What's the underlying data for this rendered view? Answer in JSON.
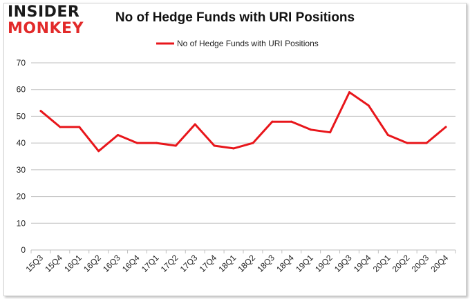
{
  "header": {
    "logo_top": "INSIDER",
    "logo_bottom": "MONKEY"
  },
  "colors": {
    "line": "#e8161b",
    "grid": "#bfbfbf",
    "logo_accent": "#e22a2a"
  },
  "chart_data": {
    "type": "line",
    "title": "No of Hedge Funds with URI Positions",
    "xlabel": "",
    "ylabel": "",
    "ylim": [
      0,
      70
    ],
    "yticks": [
      0,
      10,
      20,
      30,
      40,
      50,
      60,
      70
    ],
    "grid": true,
    "legend_position": "top-center",
    "categories": [
      "15Q3",
      "15Q4",
      "16Q1",
      "16Q2",
      "16Q3",
      "16Q4",
      "17Q1",
      "17Q2",
      "17Q3",
      "17Q4",
      "18Q1",
      "18Q2",
      "18Q3",
      "18Q4",
      "19Q1",
      "19Q2",
      "19Q3",
      "19Q4",
      "20Q1",
      "20Q2",
      "20Q3",
      "20Q4"
    ],
    "series": [
      {
        "name": "No of Hedge Funds with URI Positions",
        "values": [
          52,
          46,
          46,
          37,
          43,
          40,
          40,
          39,
          47,
          39,
          38,
          40,
          48,
          48,
          45,
          44,
          59,
          54,
          43,
          40,
          40,
          46
        ]
      }
    ]
  }
}
